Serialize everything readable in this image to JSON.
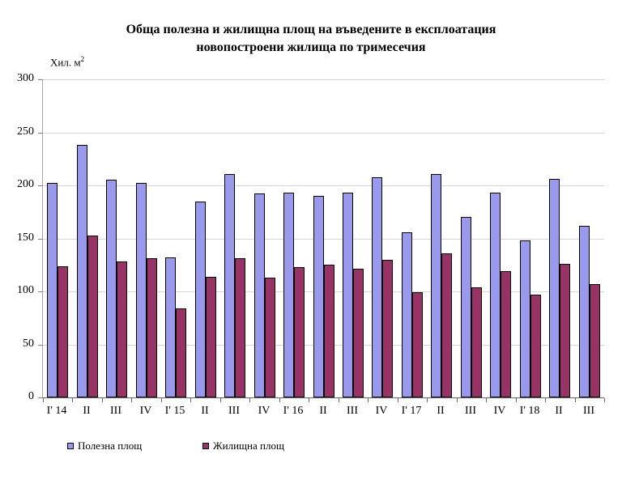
{
  "chart_data": {
    "type": "bar",
    "title_line1": "Обща полезна и жилищна площ на въведените в експлоатация",
    "title_line2": "новопостроени жилища по тримесечия",
    "y_unit": {
      "base": "Хил. м",
      "sup": "2"
    },
    "categories": [
      "I' 14",
      "II",
      "III",
      "IV",
      "I' 15",
      "II",
      "III",
      "IV",
      "I' 16",
      "II",
      "III",
      "IV",
      "I' 17",
      "II",
      "III",
      "IV",
      "I' 18",
      "II",
      "III"
    ],
    "series": [
      {
        "name": "Полезна площ",
        "color": "#9999EE",
        "border_color": "#000000",
        "values": [
          202,
          238,
          205,
          202,
          132,
          185,
          211,
          192,
          193,
          190,
          193,
          208,
          156,
          211,
          170,
          193,
          148,
          206,
          162
        ]
      },
      {
        "name": "Жилищна площ",
        "color": "#993366",
        "border_color": "#000000",
        "values": [
          124,
          153,
          128,
          131,
          84,
          114,
          131,
          113,
          123,
          125,
          121,
          130,
          99,
          136,
          104,
          119,
          97,
          126,
          107
        ]
      }
    ],
    "ylim": [
      0,
      300
    ],
    "ytick_step": 50,
    "yticks": [
      "0",
      "50",
      "100",
      "150",
      "200",
      "250",
      "300"
    ],
    "grid": "horizontal-on",
    "legend_position": "bottom",
    "colors": {
      "gridline": "#d6d6d6",
      "x_axis": "#666666",
      "y_axis": "#a6a6a6",
      "background": "#ffffff"
    }
  }
}
